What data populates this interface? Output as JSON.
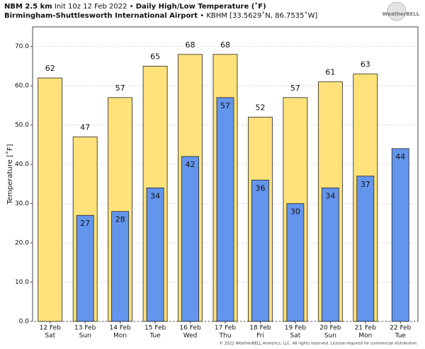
{
  "chart_data": {
    "type": "bar",
    "model": "NBM 2.5 km",
    "init": "Init 10z 12 Feb 2022",
    "separator": "•",
    "title": "Daily High/Low Temperature (˚F)",
    "location": "Birmingham-Shuttlesworth International Airport",
    "station": "KBHM [33.5629˚N, 86.7535˚W]",
    "logo": "WeatherBELL",
    "y_label": "Temperature [˚F]",
    "footer": "© 2022 WeatherBELL Analytics, LLC. All rights reserved. License required for commercial distribution.",
    "categories": [
      "12 Feb",
      "13 Feb",
      "14 Feb",
      "15 Feb",
      "16 Feb",
      "17 Feb",
      "18 Feb",
      "19 Feb",
      "20 Feb",
      "21 Feb",
      "22 Feb"
    ],
    "weekdays": [
      "Sat",
      "Sun",
      "Mon",
      "Tue",
      "Wed",
      "Thu",
      "Fri",
      "Sat",
      "Sun",
      "Mon",
      "Tue"
    ],
    "series": [
      {
        "name": "High",
        "color": "#ffe27a",
        "values": [
          62,
          47,
          57,
          65,
          68,
          68,
          52,
          57,
          61,
          63,
          null
        ]
      },
      {
        "name": "Low",
        "color": "#6495ed",
        "values": [
          null,
          27,
          28,
          34,
          42,
          57,
          36,
          30,
          34,
          37,
          44
        ]
      }
    ],
    "ylim": [
      0,
      75
    ],
    "yticks": [
      {
        "value": 0,
        "label": "0.0"
      },
      {
        "value": 10,
        "label": "10.0"
      },
      {
        "value": 20,
        "label": "20.0"
      },
      {
        "value": 30,
        "label": "30.0"
      },
      {
        "value": 40,
        "label": "40.0"
      },
      {
        "value": 50,
        "label": "50.0"
      },
      {
        "value": 60,
        "label": "60.0"
      },
      {
        "value": 70,
        "label": "70.0"
      }
    ],
    "grid": true
  }
}
